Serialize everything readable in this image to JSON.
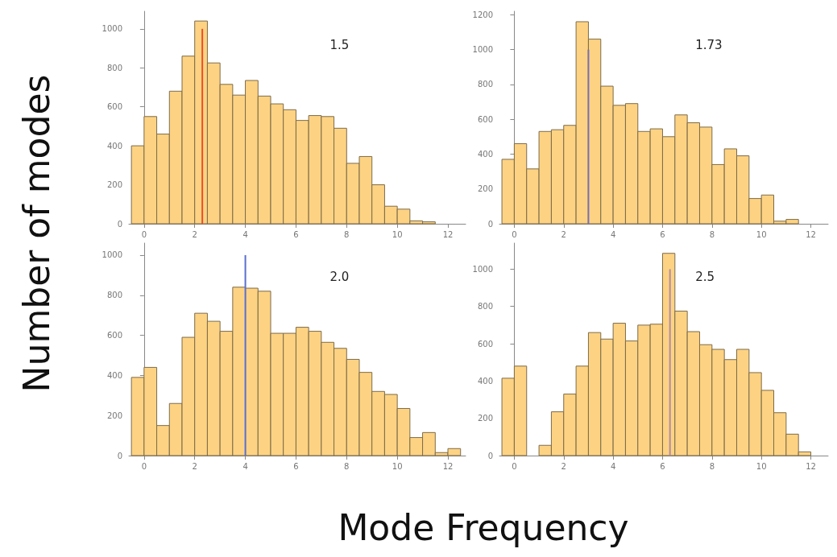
{
  "chart_data": [
    {
      "type": "histogram",
      "ylabel": "Number of modes",
      "xlabel": "Mode Frequency",
      "annotations": [
        "1.5"
      ],
      "bins": [
        -0.5,
        0,
        0.5,
        1,
        1.5,
        2,
        2.5,
        3,
        3.5,
        4,
        4.5,
        5,
        5.5,
        6,
        6.5,
        7,
        7.5,
        8,
        8.5,
        9,
        9.5,
        10,
        10.5,
        11,
        11.5
      ],
      "series": [
        {
          "color": "#fdd383",
          "values": [
            400,
            550,
            460,
            680,
            860,
            1040,
            825,
            715,
            660,
            735,
            655,
            615,
            585,
            530,
            555,
            550,
            490,
            310,
            345,
            200,
            90,
            75,
            15,
            10
          ]
        },
        {
          "type": "line",
          "color": "#e8502a",
          "x": [
            2.3,
            2.3
          ],
          "values": [
            0,
            1000
          ]
        }
      ],
      "xlim": [
        -0.6,
        12.7
      ],
      "xticks": [
        0,
        2,
        4,
        6,
        8,
        10,
        12
      ],
      "ylim": [
        0,
        1090
      ],
      "yticks": [
        0,
        200,
        400,
        600,
        800,
        1000
      ]
    },
    {
      "type": "histogram",
      "annotations": [
        "1.73"
      ],
      "bins": [
        -0.5,
        0,
        0.5,
        1,
        1.5,
        2,
        2.5,
        3,
        3.5,
        4,
        4.5,
        5,
        5.5,
        6,
        6.5,
        7,
        7.5,
        8,
        8.5,
        9,
        9.5,
        10,
        10.5,
        11,
        11.5
      ],
      "series": [
        {
          "color": "#fdd383",
          "values": [
            370,
            460,
            315,
            530,
            540,
            565,
            1160,
            1060,
            790,
            680,
            690,
            530,
            545,
            500,
            625,
            580,
            555,
            340,
            430,
            390,
            145,
            165,
            15,
            25
          ]
        },
        {
          "type": "line",
          "color": "#7b6fb0",
          "x": [
            3.0,
            3.0
          ],
          "values": [
            0,
            1000
          ]
        }
      ],
      "xlim": [
        -0.6,
        12.7
      ],
      "xticks": [
        0,
        2,
        4,
        6,
        8,
        10,
        12
      ],
      "ylim": [
        0,
        1220
      ],
      "yticks": [
        0,
        200,
        400,
        600,
        800,
        1000,
        1200
      ]
    },
    {
      "type": "histogram",
      "annotations": [
        "2.0"
      ],
      "bins": [
        -0.5,
        0,
        0.5,
        1,
        1.5,
        2,
        2.5,
        3,
        3.5,
        4,
        4.5,
        5,
        5.5,
        6,
        6.5,
        7,
        7.5,
        8,
        8.5,
        9,
        9.5,
        10,
        10.5,
        11,
        11.5,
        12,
        12.5
      ],
      "series": [
        {
          "color": "#fdd383",
          "values": [
            390,
            440,
            150,
            260,
            590,
            710,
            670,
            620,
            840,
            835,
            820,
            610,
            610,
            640,
            620,
            565,
            535,
            480,
            415,
            320,
            305,
            235,
            90,
            115,
            15,
            35
          ]
        },
        {
          "type": "line",
          "color": "#5a6fd0",
          "x": [
            4.0,
            4.0
          ],
          "values": [
            0,
            1000
          ]
        }
      ],
      "xlim": [
        -0.6,
        12.7
      ],
      "xticks": [
        0,
        2,
        4,
        6,
        8,
        10,
        12
      ],
      "ylim": [
        0,
        1060
      ],
      "yticks": [
        0,
        200,
        400,
        600,
        800,
        1000
      ]
    },
    {
      "type": "histogram",
      "annotations": [
        "2.5"
      ],
      "bins": [
        -0.5,
        0,
        0.5,
        1,
        1.5,
        2,
        2.5,
        3,
        3.5,
        4,
        4.5,
        5,
        5.5,
        6,
        6.5,
        7,
        7.5,
        8,
        8.5,
        9,
        9.5,
        10,
        10.5,
        11,
        11.5,
        12
      ],
      "series": [
        {
          "color": "#fdd383",
          "values": [
            415,
            480,
            null,
            55,
            235,
            330,
            480,
            660,
            625,
            710,
            615,
            700,
            705,
            1085,
            775,
            665,
            595,
            570,
            515,
            570,
            445,
            350,
            230,
            115,
            20
          ]
        },
        {
          "type": "line",
          "color": "#b08aa8",
          "x": [
            6.3,
            6.3
          ],
          "values": [
            0,
            1000
          ]
        }
      ],
      "xlim": [
        -0.6,
        12.7
      ],
      "xticks": [
        0,
        2,
        4,
        6,
        8,
        10,
        12
      ],
      "ylim": [
        0,
        1140
      ],
      "yticks": [
        0,
        200,
        400,
        600,
        800,
        1000
      ]
    }
  ]
}
